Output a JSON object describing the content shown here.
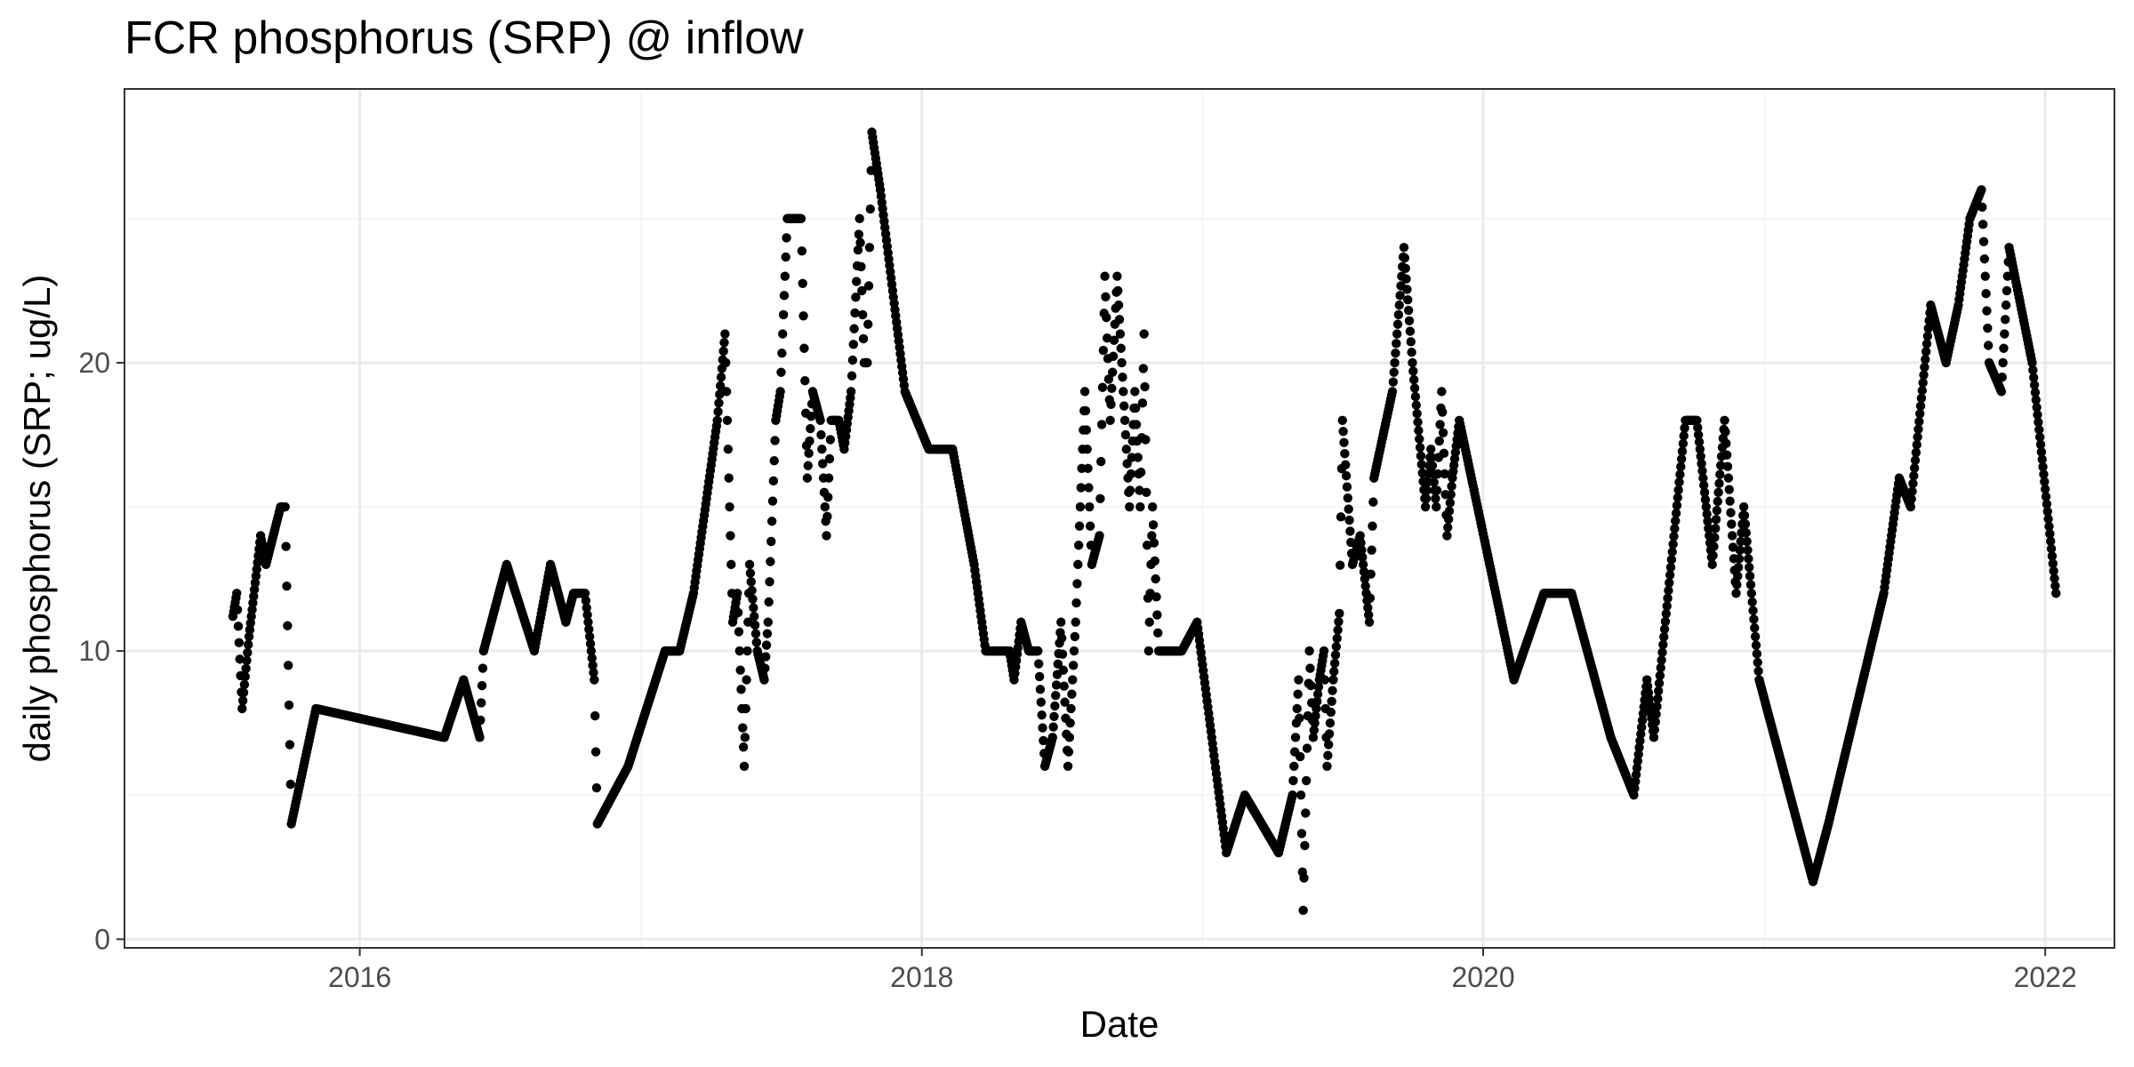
{
  "chart_data": {
    "type": "scatter",
    "title": "FCR phosphorus (SRP) @ inflow",
    "xlabel": "Date",
    "ylabel": "daily phosphorus (SRP; ug/L)",
    "x_type": "date",
    "xlim": [
      "2015-03-01",
      "2022-04-01"
    ],
    "ylim": [
      -0.3,
      29.5
    ],
    "x_ticks": [
      {
        "value": "2016-01-01",
        "label": "2016"
      },
      {
        "value": "2018-01-01",
        "label": "2018"
      },
      {
        "value": "2020-01-01",
        "label": "2020"
      },
      {
        "value": "2022-01-01",
        "label": "2022"
      }
    ],
    "x_minor_ticks": [
      "2015-01-01",
      "2017-01-01",
      "2019-01-01",
      "2021-01-01"
    ],
    "y_ticks": [
      0,
      10,
      20
    ],
    "y_minor_ticks": [
      5,
      15,
      25
    ],
    "grid": true,
    "marker_color": "#000000",
    "series": [
      {
        "values": [
          [
            "2015-07-20",
            11.2
          ],
          [
            "2015-07-25",
            12.0
          ],
          [
            "2015-08-01",
            8.0
          ],
          [
            "2015-08-10",
            10.5
          ],
          [
            "2015-08-25",
            14.0
          ],
          [
            "2015-09-01",
            13.0
          ],
          [
            "2015-09-20",
            15.0
          ],
          [
            "2015-09-26",
            15.0
          ],
          [
            "2015-10-04",
            4.0
          ],
          [
            "2015-10-12",
            5.0
          ],
          [
            "2015-11-05",
            8.0
          ],
          [
            "2016-04-20",
            7.0
          ],
          [
            "2016-05-15",
            9.0
          ],
          [
            "2016-06-05",
            7.0
          ],
          [
            "2016-06-10",
            10.0
          ],
          [
            "2016-07-10",
            13.0
          ],
          [
            "2016-08-15",
            10.0
          ],
          [
            "2016-09-05",
            13.0
          ],
          [
            "2016-09-25",
            11.0
          ],
          [
            "2016-10-05",
            12.0
          ],
          [
            "2016-10-20",
            12.0
          ],
          [
            "2016-11-01",
            9.0
          ],
          [
            "2016-11-05",
            4.0
          ],
          [
            "2016-12-15",
            6.0
          ],
          [
            "2017-02-01",
            10.0
          ],
          [
            "2017-02-20",
            10.0
          ],
          [
            "2017-03-10",
            12.0
          ],
          [
            "2017-04-10",
            18.0
          ],
          [
            "2017-04-20",
            21.0
          ],
          [
            "2017-04-30",
            11.0
          ],
          [
            "2017-05-06",
            12.0
          ],
          [
            "2017-05-15",
            6.0
          ],
          [
            "2017-05-22",
            13.0
          ],
          [
            "2017-06-01",
            10.0
          ],
          [
            "2017-06-10",
            9.0
          ],
          [
            "2017-06-15",
            11.0
          ],
          [
            "2017-06-25",
            18.0
          ],
          [
            "2017-07-01",
            19.0
          ],
          [
            "2017-07-10",
            25.0
          ],
          [
            "2017-07-20",
            25.0
          ],
          [
            "2017-07-28",
            25.0
          ],
          [
            "2017-08-05",
            16.0
          ],
          [
            "2017-08-12",
            19.0
          ],
          [
            "2017-08-22",
            18.0
          ],
          [
            "2017-08-30",
            14.0
          ],
          [
            "2017-09-05",
            18.0
          ],
          [
            "2017-09-15",
            18.0
          ],
          [
            "2017-09-22",
            17.0
          ],
          [
            "2017-10-01",
            19.0
          ],
          [
            "2017-10-12",
            25.0
          ],
          [
            "2017-10-18",
            20.0
          ],
          [
            "2017-10-22",
            20.0
          ],
          [
            "2017-10-28",
            28.0
          ],
          [
            "2017-11-08",
            26.0
          ],
          [
            "2017-12-10",
            19.0
          ],
          [
            "2018-01-10",
            17.0
          ],
          [
            "2018-02-10",
            17.0
          ],
          [
            "2018-03-10",
            13.0
          ],
          [
            "2018-03-25",
            10.0
          ],
          [
            "2018-04-25",
            10.0
          ],
          [
            "2018-05-01",
            9.0
          ],
          [
            "2018-05-10",
            11.0
          ],
          [
            "2018-05-20",
            10.0
          ],
          [
            "2018-06-01",
            10.0
          ],
          [
            "2018-06-10",
            6.0
          ],
          [
            "2018-06-20",
            7.0
          ],
          [
            "2018-07-01",
            11.0
          ],
          [
            "2018-07-10",
            6.0
          ],
          [
            "2018-07-20",
            11.0
          ],
          [
            "2018-08-01",
            19.0
          ],
          [
            "2018-08-10",
            13.0
          ],
          [
            "2018-08-20",
            14.0
          ],
          [
            "2018-08-27",
            23.0
          ],
          [
            "2018-09-03",
            18.0
          ],
          [
            "2018-09-12",
            23.0
          ],
          [
            "2018-09-20",
            19.0
          ],
          [
            "2018-09-28",
            15.0
          ],
          [
            "2018-10-05",
            19.0
          ],
          [
            "2018-10-12",
            15.0
          ],
          [
            "2018-10-17",
            21.0
          ],
          [
            "2018-10-23",
            10.0
          ],
          [
            "2018-10-28",
            15.0
          ],
          [
            "2018-11-05",
            10.0
          ],
          [
            "2018-12-05",
            10.0
          ],
          [
            "2018-12-25",
            11.0
          ],
          [
            "2019-02-01",
            3.0
          ],
          [
            "2019-02-25",
            5.0
          ],
          [
            "2019-04-10",
            3.0
          ],
          [
            "2019-04-28",
            5.0
          ],
          [
            "2019-05-06",
            9.0
          ],
          [
            "2019-05-12",
            1.0
          ],
          [
            "2019-05-20",
            10.0
          ],
          [
            "2019-05-25",
            7.0
          ],
          [
            "2019-06-02",
            9.0
          ],
          [
            "2019-06-08",
            10.0
          ],
          [
            "2019-06-12",
            6.0
          ],
          [
            "2019-06-20",
            9.0
          ],
          [
            "2019-06-28",
            11.3
          ],
          [
            "2019-07-02",
            18.0
          ],
          [
            "2019-07-15",
            13.0
          ],
          [
            "2019-07-25",
            14.0
          ],
          [
            "2019-08-06",
            11.0
          ],
          [
            "2019-08-12",
            16.0
          ],
          [
            "2019-09-05",
            19.0
          ],
          [
            "2019-09-20",
            24.0
          ],
          [
            "2019-10-01",
            20.0
          ],
          [
            "2019-10-18",
            15.0
          ],
          [
            "2019-10-25",
            17.0
          ],
          [
            "2019-11-01",
            15.0
          ],
          [
            "2019-11-08",
            19.0
          ],
          [
            "2019-11-15",
            14.0
          ],
          [
            "2019-11-22",
            16.0
          ],
          [
            "2019-12-01",
            18.0
          ],
          [
            "2020-02-10",
            9.0
          ],
          [
            "2020-03-20",
            12.0
          ],
          [
            "2020-04-25",
            12.0
          ],
          [
            "2020-06-15",
            7.0
          ],
          [
            "2020-07-15",
            5.0
          ],
          [
            "2020-08-01",
            9.0
          ],
          [
            "2020-08-10",
            7.0
          ],
          [
            "2020-09-20",
            18.0
          ],
          [
            "2020-10-05",
            18.0
          ],
          [
            "2020-10-25",
            13.0
          ],
          [
            "2020-11-10",
            18.0
          ],
          [
            "2020-11-25",
            12.0
          ],
          [
            "2020-12-05",
            15.0
          ],
          [
            "2020-12-25",
            9.0
          ],
          [
            "2021-03-05",
            2.0
          ],
          [
            "2021-03-25",
            4.0
          ],
          [
            "2021-06-05",
            12.0
          ],
          [
            "2021-06-25",
            16.0
          ],
          [
            "2021-07-10",
            15.0
          ],
          [
            "2021-08-05",
            22.0
          ],
          [
            "2021-08-25",
            20.0
          ],
          [
            "2021-09-10",
            22.0
          ],
          [
            "2021-09-25",
            25.0
          ],
          [
            "2021-10-10",
            26.0
          ],
          [
            "2021-10-20",
            20.0
          ],
          [
            "2021-11-05",
            19.0
          ],
          [
            "2021-11-15",
            24.0
          ],
          [
            "2021-12-15",
            20.0
          ],
          [
            "2022-01-15",
            12.0
          ]
        ]
      }
    ]
  }
}
